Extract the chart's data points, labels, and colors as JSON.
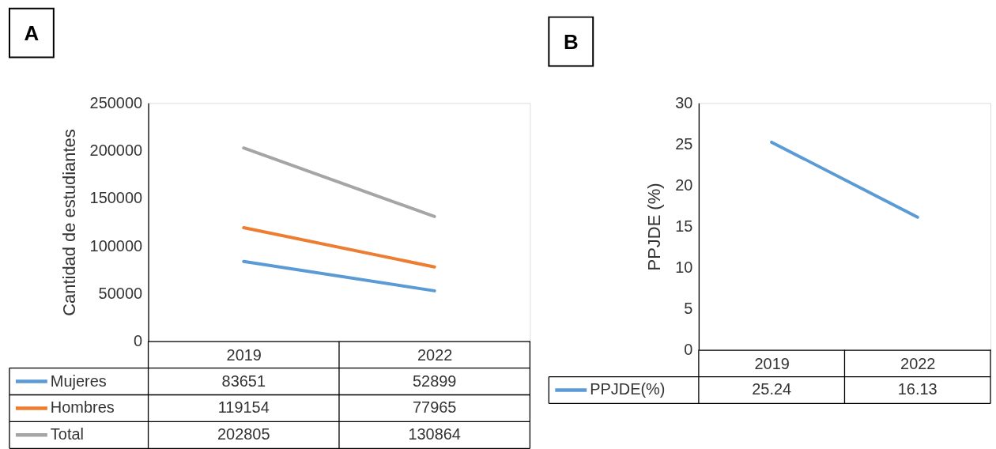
{
  "chart_data": [
    {
      "type": "line",
      "title": "A",
      "ylabel": "Cantidad de estudiantes",
      "categories": [
        "2019",
        "2022"
      ],
      "ylim": [
        0,
        250000
      ],
      "yticks": [
        0,
        50000,
        100000,
        150000,
        200000,
        250000
      ],
      "legend": "bottom",
      "data_labels": true,
      "series": [
        {
          "name": "Mujeres",
          "color": "#5b9bd5",
          "values": [
            83651,
            52899
          ]
        },
        {
          "name": "Hombres",
          "color": "#ed7d31",
          "values": [
            119154,
            77965
          ]
        },
        {
          "name": "Total",
          "color": "#a5a5a5",
          "values": [
            202805,
            130864
          ]
        }
      ]
    },
    {
      "type": "line",
      "title": "B",
      "ylabel": "PPJDE (%)",
      "categories": [
        "2019",
        "2022"
      ],
      "ylim": [
        0,
        30
      ],
      "yticks": [
        0,
        5,
        10,
        15,
        20,
        25,
        30
      ],
      "legend": "bottom",
      "data_labels": true,
      "series": [
        {
          "name": "PPJDE(%)",
          "color": "#5b9bd5",
          "values": [
            25.24,
            16.13
          ]
        }
      ]
    }
  ]
}
